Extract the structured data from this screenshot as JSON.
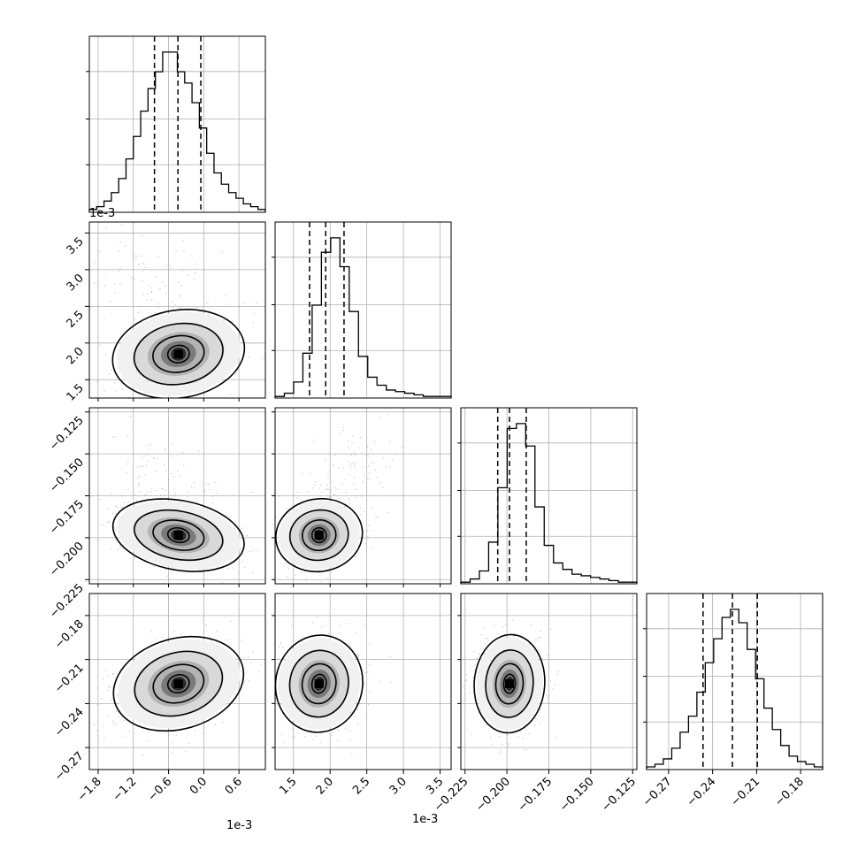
{
  "chart_data": {
    "type": "corner",
    "parameters": [
      {
        "index": 0,
        "range": [
          -0.00195,
          0.00105
        ],
        "offset_label": "1e-3",
        "tick_values": [
          -0.0018,
          -0.0012,
          -0.0006,
          0.0,
          0.0006
        ],
        "tick_labels": [
          "−1.8",
          "−1.2",
          "−0.6",
          "0.0",
          "0.6"
        ],
        "quantiles": [
          -0.00084,
          -0.00044,
          -5e-05
        ],
        "histogram": [
          1,
          2,
          4,
          7,
          12,
          19,
          27,
          36,
          44,
          50,
          57,
          57,
          50,
          46,
          39,
          30,
          21,
          14,
          10,
          7,
          5,
          3,
          2,
          1
        ]
      },
      {
        "index": 1,
        "range": [
          0.00125,
          0.00365
        ],
        "offset_label": "1e-3",
        "tick_values": [
          0.0015,
          0.002,
          0.0025,
          0.003,
          0.0035
        ],
        "tick_labels": [
          "1.5",
          "2.0",
          "2.5",
          "3.0",
          "3.5"
        ],
        "quantiles": [
          0.00172,
          0.00194,
          0.00219
        ],
        "histogram": [
          1,
          3,
          10,
          28,
          58,
          91,
          100,
          82,
          54,
          26,
          13,
          8,
          5,
          4,
          3,
          2,
          1,
          1,
          1
        ]
      },
      {
        "index": 2,
        "range": [
          -0.2275,
          -0.1225
        ],
        "tick_values": [
          -0.225,
          -0.2,
          -0.175,
          -0.15,
          -0.125
        ],
        "tick_labels": [
          "−0.225",
          "−0.200",
          "−0.175",
          "−0.150",
          "−0.125"
        ],
        "quantiles": [
          -0.2055,
          -0.1985,
          -0.1885
        ],
        "histogram": [
          1,
          3,
          8,
          26,
          60,
          97,
          100,
          86,
          48,
          24,
          13,
          9,
          6,
          5,
          4,
          3,
          2,
          1,
          1
        ]
      },
      {
        "index": 3,
        "range": [
          -0.285,
          -0.165
        ],
        "tick_values": [
          -0.27,
          -0.24,
          -0.21,
          -0.18
        ],
        "tick_labels": [
          "−0.27",
          "−0.24",
          "−0.21",
          "−0.18"
        ],
        "quantiles": [
          -0.2465,
          -0.2265,
          -0.2095
        ],
        "histogram": [
          1,
          2,
          4,
          8,
          14,
          20,
          29,
          40,
          49,
          57,
          60,
          55,
          45,
          34,
          23,
          15,
          9,
          5,
          3,
          2,
          1
        ]
      }
    ],
    "y_ticks": {
      "p1": [
        "3.5",
        "3.0",
        "2.5",
        "2.0",
        "1.5"
      ],
      "p2": [
        "−0.125",
        "−0.150",
        "−0.175",
        "−0.200",
        "−0.225"
      ],
      "p3": [
        "−0.18",
        "−0.21",
        "−0.24",
        "−0.27"
      ]
    },
    "y_offset_label": "1e-3",
    "x_offset_label_p0": "1e-3",
    "x_offset_label_p1": "1e-3",
    "pairs": [
      {
        "x": 0,
        "y": 1,
        "mean": [
          -0.00043,
          0.00185
        ],
        "std": [
          0.00042,
          0.00022
        ],
        "rho": 0.25,
        "tail": [
          -0.75,
          2.2
        ]
      },
      {
        "x": 0,
        "y": 2,
        "mean": [
          -0.00043,
          -0.1985
        ],
        "std": [
          0.00042,
          0.0078
        ],
        "rho": -0.35,
        "tail": [
          -0.6,
          2.5
        ]
      },
      {
        "x": 1,
        "y": 2,
        "mean": [
          0.00185,
          -0.1985
        ],
        "std": [
          0.00022,
          0.0078
        ],
        "rho": 0.2,
        "tail": [
          1.25,
          2.6
        ]
      },
      {
        "x": 0,
        "y": 3,
        "mean": [
          -0.00043,
          -0.2265
        ],
        "std": [
          0.00042,
          0.012
        ],
        "rho": 0.4,
        "tail": [
          0,
          0
        ]
      },
      {
        "x": 1,
        "y": 3,
        "mean": [
          0.00185,
          -0.2265
        ],
        "std": [
          0.00022,
          0.012
        ],
        "rho": -0.15,
        "tail": [
          0.6,
          0.4
        ]
      },
      {
        "x": 2,
        "y": 3,
        "mean": [
          -0.1985,
          -0.2265
        ],
        "std": [
          0.0078,
          0.012
        ],
        "rho": -0.05,
        "tail": [
          0.6,
          0.4
        ]
      }
    ],
    "grid": true,
    "color": "#000000",
    "point_color": "#9a9a9a"
  }
}
